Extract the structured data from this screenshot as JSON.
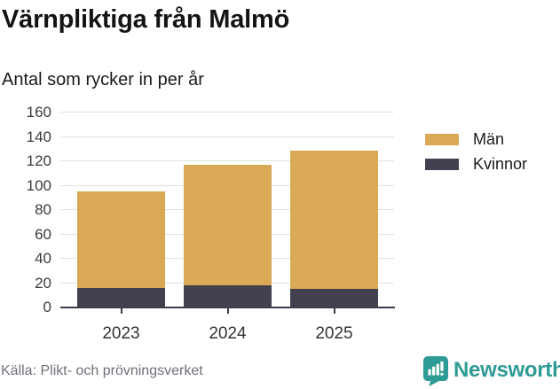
{
  "header": {
    "title": "Värnpliktiga från Malmö",
    "subtitle": "Antal som rycker in per år"
  },
  "footer": {
    "source": "Källa: Plikt- och prövningsverket",
    "brand": "Newsworthy"
  },
  "colors": {
    "men": "#daa955",
    "women": "#434050",
    "axis": "#3f3c4d",
    "gridline": "#e1e1e1",
    "brand_teal": "#2e9b94"
  },
  "legend": {
    "items": [
      {
        "label": "Män",
        "color": "#daa955"
      },
      {
        "label": "Kvinnor",
        "color": "#434050"
      }
    ]
  },
  "chart_data": {
    "type": "bar",
    "stacked": true,
    "title": "Värnpliktiga från Malmö",
    "subtitle": "Antal som rycker in per år",
    "categories": [
      "2023",
      "2024",
      "2025"
    ],
    "series": [
      {
        "name": "Kvinnor",
        "color": "#434050",
        "values": [
          16,
          18,
          15
        ]
      },
      {
        "name": "Män",
        "color": "#daa955",
        "values": [
          79,
          99,
          114
        ]
      }
    ],
    "totals": [
      95,
      117,
      129
    ],
    "ylim": [
      0,
      160
    ],
    "yticks": [
      0,
      20,
      40,
      60,
      80,
      100,
      120,
      140,
      160
    ],
    "xlabel": "",
    "ylabel": "",
    "grid": true,
    "legend_position": "right"
  }
}
